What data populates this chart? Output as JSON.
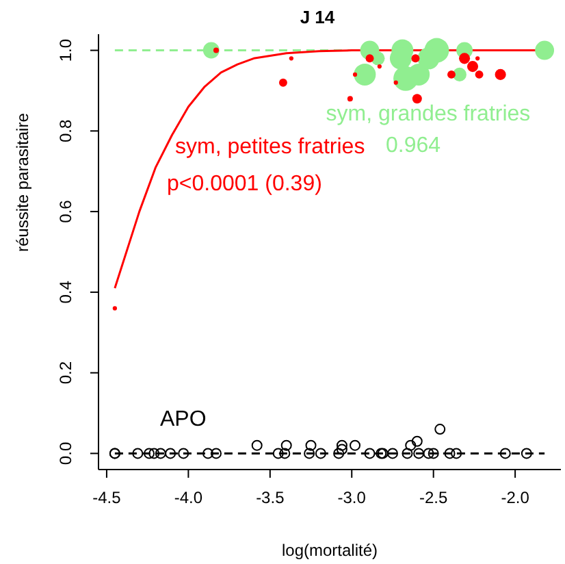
{
  "chart_data": {
    "type": "bubble",
    "title": "J 14",
    "xlabel": "log(mortalité)",
    "ylabel": "réussite parasitaire",
    "xlim": [
      -4.55,
      -1.72
    ],
    "ylim": [
      -0.04,
      1.04
    ],
    "xticks": [
      -4.5,
      {
        "value": -4,
        "label": "-4.0"
      },
      -3.5,
      {
        "value": -3,
        "label": "-3.0"
      },
      -2.5,
      {
        "value": -2,
        "label": "-2.0"
      }
    ],
    "yticks": [
      {
        "value": 0,
        "label": "0.0"
      },
      {
        "value": 0.2,
        "label": "0.2"
      },
      {
        "value": 0.4,
        "label": "0.4"
      },
      {
        "value": 0.6,
        "label": "0.6"
      },
      {
        "value": 0.8,
        "label": "0.8"
      },
      {
        "value": 1,
        "label": "1.0"
      }
    ],
    "annotations": [
      "0.964",
      "p<0.0001 (0.39)"
    ],
    "series": [
      {
        "type": "line",
        "color": "#90ee90",
        "line_style": "dashed",
        "x": [
          -4.45,
          -1.82
        ],
        "values": [
          1,
          1
        ]
      },
      {
        "type": "line",
        "color": "#000000",
        "line_style": "dashed",
        "x": [
          -4.45,
          -1.82
        ],
        "values": [
          0,
          0
        ]
      },
      {
        "name": "sym, grandes fratries",
        "color": "#90ee90",
        "marker": "circle",
        "x": [
          -3.86,
          -2.89,
          -2.92,
          -2.69,
          -2.67,
          -2.59,
          -2.7,
          -2.48,
          -2.53,
          -2.31,
          -2.34,
          -1.82,
          -2.84
        ],
        "values": [
          1,
          1,
          0.94,
          1,
          0.93,
          0.94,
          0.98,
          1,
          0.98,
          1,
          0.94,
          1,
          0.98
        ],
        "sizes": [
          0.44,
          0.6,
          0.79,
          0.79,
          1,
          0.79,
          0.79,
          1,
          0.79,
          0.44,
          0.31,
          0.6,
          0.31
        ]
      },
      {
        "name": "sym, petites fratries",
        "color": "#ff0000",
        "marker": "circle",
        "x": [
          -4.45,
          -3.83,
          -3.37,
          -3.42,
          -3.01,
          -2.98,
          -2.89,
          -2.83,
          -2.73,
          -2.61,
          -2.6,
          -2.39,
          -2.31,
          -2.26,
          -2.23,
          -2.22,
          -2.09
        ],
        "values": [
          0.36,
          1,
          0.98,
          0.92,
          0.88,
          0.94,
          0.98,
          0.96,
          0.92,
          0.98,
          0.88,
          0.94,
          0.98,
          0.96,
          0.98,
          0.94,
          0.94
        ],
        "sizes": [
          0.03,
          0.05,
          0.03,
          0.11,
          0.05,
          0.03,
          0.11,
          0.03,
          0.03,
          0.11,
          0.15,
          0.11,
          0.2,
          0.2,
          0.03,
          0.11,
          0.2
        ]
      },
      {
        "type": "line",
        "color": "#ff0000",
        "line_style": "solid",
        "x": [
          -4.45,
          -4.3,
          -4.2,
          -4.1,
          -4.0,
          -3.9,
          -3.8,
          -3.7,
          -3.6,
          -3.4,
          -3.2,
          -3.0,
          -1.82
        ],
        "values": [
          0.41,
          0.6,
          0.71,
          0.79,
          0.86,
          0.91,
          0.945,
          0.965,
          0.98,
          0.993,
          0.998,
          1,
          1
        ]
      },
      {
        "type": "scatter",
        "name": "APO",
        "color": "#000000",
        "marker": "circle",
        "x": [
          -4.45,
          -4.45,
          -4.31,
          -4.24,
          -4.21,
          -4.17,
          -4.11,
          -4.03,
          -3.88,
          -3.83,
          -3.58,
          -3.45,
          -3.41,
          -3.4,
          -3.26,
          -3.25,
          -3.19,
          -3.08,
          -3.06,
          -3.06,
          -2.98,
          -2.89,
          -2.82,
          -2.81,
          -2.75,
          -2.66,
          -2.64,
          -2.6,
          -2.59,
          -2.53,
          -2.5,
          -2.46,
          -2.4,
          -2.36,
          -2.06,
          -1.93
        ],
        "values": [
          0,
          0,
          0,
          0,
          0,
          0,
          0,
          0,
          0,
          0,
          0.02,
          0,
          0,
          0.02,
          0,
          0.02,
          0,
          0,
          0.02,
          0.01,
          0.02,
          0,
          0,
          0,
          0,
          0,
          0.02,
          0.03,
          0,
          0,
          0,
          0.06,
          0,
          0,
          0,
          0
        ]
      }
    ]
  }
}
